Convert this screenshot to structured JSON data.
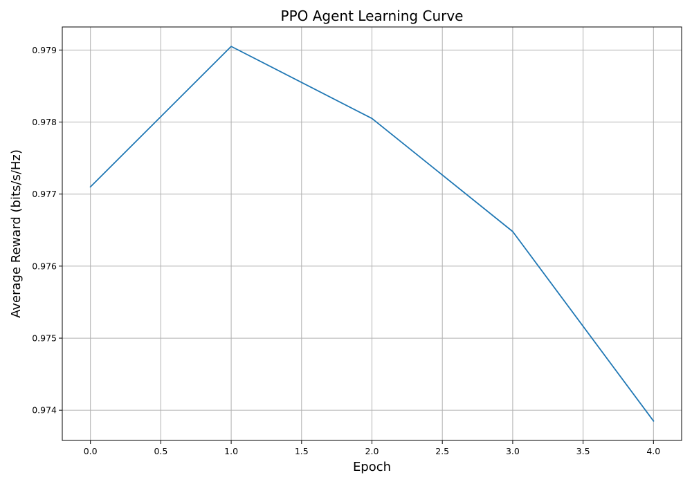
{
  "chart_data": {
    "type": "line",
    "title": "PPO Agent Learning Curve",
    "xlabel": "Epoch",
    "ylabel": "Average Reward (bits/s/Hz)",
    "x": [
      0,
      1,
      2,
      3,
      4
    ],
    "series": [
      {
        "values": [
          0.9771,
          0.97905,
          0.97805,
          0.97648,
          0.97385
        ],
        "color": "#1f77b4"
      }
    ],
    "xlim": [
      -0.2,
      4.2
    ],
    "ylim": [
      0.97358,
      0.97932
    ],
    "xticks": [
      0.0,
      0.5,
      1.0,
      1.5,
      2.0,
      2.5,
      3.0,
      3.5,
      4.0
    ],
    "xtick_labels": [
      "0.0",
      "0.5",
      "1.0",
      "1.5",
      "2.0",
      "2.5",
      "3.0",
      "3.5",
      "4.0"
    ],
    "yticks": [
      0.974,
      0.975,
      0.976,
      0.977,
      0.978,
      0.979
    ],
    "ytick_labels": [
      "0.974",
      "0.975",
      "0.976",
      "0.977",
      "0.978",
      "0.979"
    ],
    "grid": true,
    "legend": "none"
  }
}
